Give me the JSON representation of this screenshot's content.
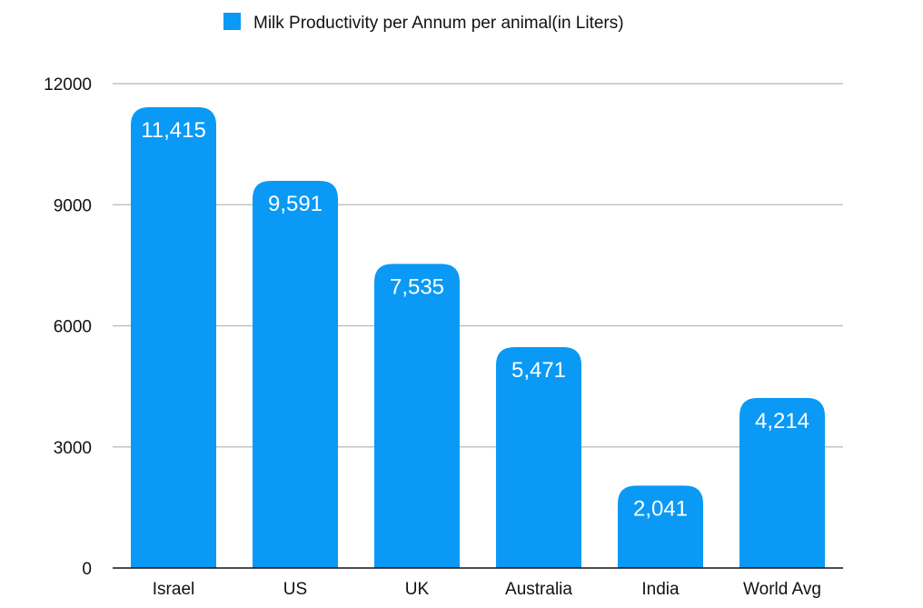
{
  "chart_data": {
    "type": "bar",
    "categories": [
      "Israel",
      "US",
      "UK",
      "Australia",
      "India",
      "World Avg"
    ],
    "series": [
      {
        "name": "Milk Productivity per Annum per animal(in Liters)",
        "values": [
          11415,
          9591,
          7535,
          5471,
          2041,
          4214
        ],
        "labels": [
          "11,415",
          "9,591",
          "7,535",
          "5,471",
          "2,041",
          "4,214"
        ],
        "color": "#0a99f5"
      }
    ],
    "yticks": [
      "0",
      "3000",
      "6000",
      "9000",
      "12000"
    ],
    "ylim": [
      0,
      12000
    ],
    "grid": true,
    "legend_position": "top-center"
  }
}
